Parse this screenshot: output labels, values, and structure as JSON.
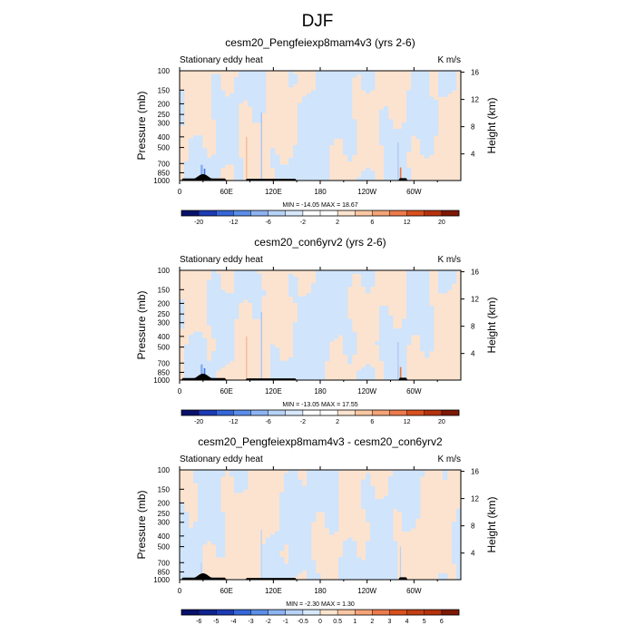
{
  "page_title": "DJF",
  "chart_data": [
    {
      "type": "heatmap",
      "title": "cesm20_Pengfeiexp8mam4v3 (yrs 2-6)",
      "left_label": "Stationary eddy heat",
      "units": "K m/s",
      "ylabel": "Pressure (mb)",
      "y2label": "Height (km)",
      "y_ticks": [
        "100",
        "150",
        "200",
        "250",
        "300",
        "400",
        "500",
        "700",
        "850",
        "1000"
      ],
      "y2_ticks": [
        "16",
        "12",
        "8",
        "4"
      ],
      "x_ticks": [
        "0",
        "60E",
        "120E",
        "180",
        "120W",
        "60W"
      ],
      "stats": "MIN = -14.05  MAX = 18.67",
      "colorbar_labels": [
        "-20",
        "-12",
        "-6",
        "-2",
        "2",
        "6",
        "12",
        "20"
      ],
      "colorbar_colors": [
        "#08106b",
        "#1d3ab5",
        "#3667d9",
        "#5b8ee8",
        "#8db3f2",
        "#b7d2f7",
        "#d8e8fb",
        "#ffffff",
        "#ffffff",
        "#fde4cf",
        "#f9c7a3",
        "#f4a377",
        "#ec7a4c",
        "#d9501f",
        "#b5320d",
        "#7d1805"
      ]
    },
    {
      "type": "heatmap",
      "title": "cesm20_con6yrv2 (yrs 2-6)",
      "left_label": "Stationary eddy heat",
      "units": "K m/s",
      "ylabel": "Pressure (mb)",
      "y2label": "Height (km)",
      "y_ticks": [
        "100",
        "150",
        "200",
        "250",
        "300",
        "400",
        "500",
        "700",
        "850",
        "1000"
      ],
      "y2_ticks": [
        "16",
        "12",
        "8",
        "4"
      ],
      "x_ticks": [
        "0",
        "60E",
        "120E",
        "180",
        "120W",
        "60W"
      ],
      "stats": "MIN = -13.05  MAX = 17.55",
      "colorbar_labels": [
        "-20",
        "-12",
        "-6",
        "-2",
        "2",
        "6",
        "12",
        "20"
      ],
      "colorbar_colors": [
        "#08106b",
        "#1d3ab5",
        "#3667d9",
        "#5b8ee8",
        "#8db3f2",
        "#b7d2f7",
        "#d8e8fb",
        "#ffffff",
        "#ffffff",
        "#fde4cf",
        "#f9c7a3",
        "#f4a377",
        "#ec7a4c",
        "#d9501f",
        "#b5320d",
        "#7d1805"
      ]
    },
    {
      "type": "heatmap",
      "title": "cesm20_Pengfeiexp8mam4v3 - cesm20_con6yrv2",
      "left_label": "Stationary eddy heat",
      "units": "K m/s",
      "ylabel": "Pressure (mb)",
      "y2label": "Height (km)",
      "y_ticks": [
        "100",
        "150",
        "200",
        "250",
        "300",
        "400",
        "500",
        "700",
        "850",
        "1000"
      ],
      "y2_ticks": [
        "16",
        "12",
        "8",
        "4"
      ],
      "x_ticks": [
        "0",
        "60E",
        "120E",
        "180",
        "120W",
        "60W"
      ],
      "stats": "MIN = -2.30  MAX = 1.30",
      "colorbar_labels": [
        "-6",
        "-5",
        "-4",
        "-3",
        "-2",
        "-1",
        "-0.5",
        "0",
        "0.5",
        "1",
        "2",
        "3",
        "4",
        "5",
        "6"
      ],
      "colorbar_colors": [
        "#08106b",
        "#0f2490",
        "#1d3ab5",
        "#3667d9",
        "#5b8ee8",
        "#8db3f2",
        "#b7d2f7",
        "#d8e8fb",
        "#fde4cf",
        "#f9c7a3",
        "#f4a377",
        "#ec7a4c",
        "#d9501f",
        "#c23f15",
        "#b5320d",
        "#7d1805"
      ]
    }
  ]
}
